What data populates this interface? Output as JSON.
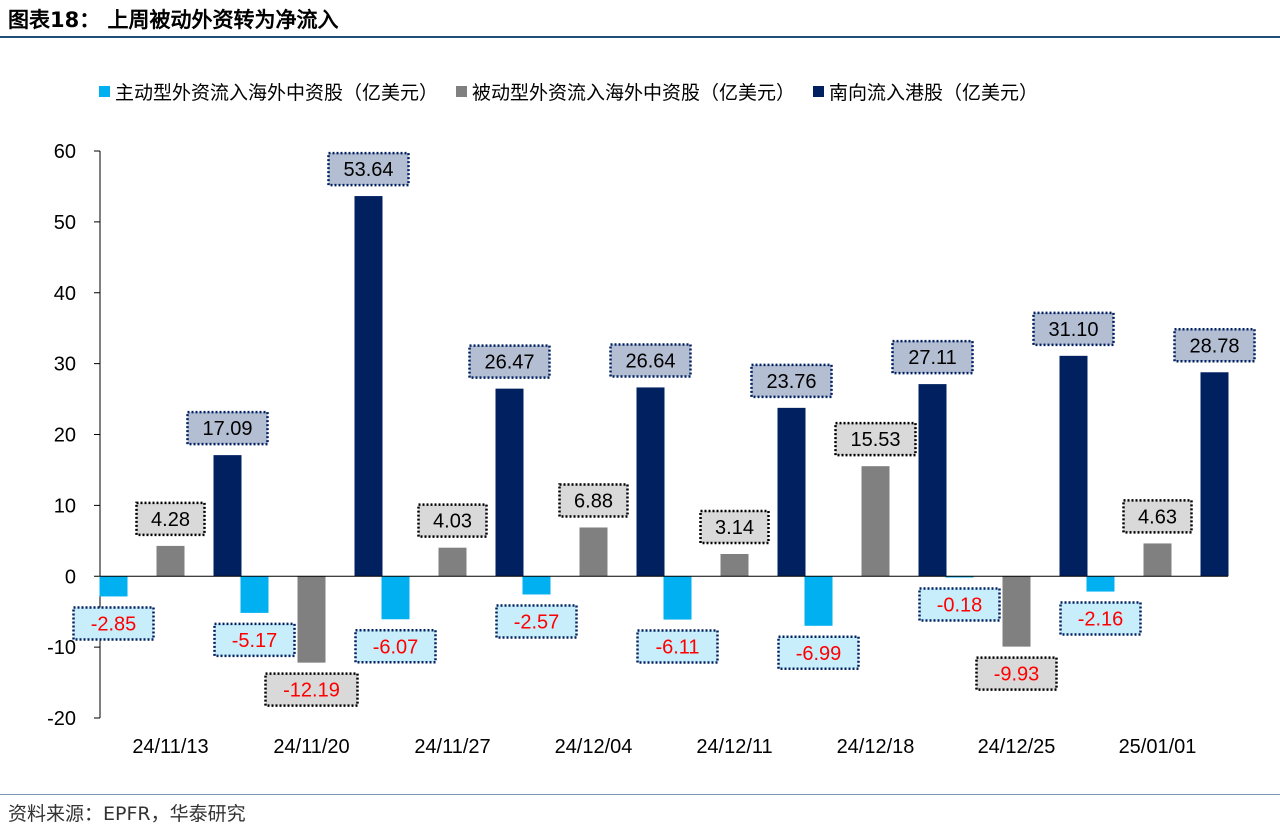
{
  "header": {
    "title": "图表18：  上周被动外资转为净流入"
  },
  "legend": [
    {
      "label": "主动型外资流入海外中资股（亿美元）",
      "color": "#00B0F0"
    },
    {
      "label": "被动型外资流入海外中资股（亿美元）",
      "color": "#808080"
    },
    {
      "label": "南向流入港股（亿美元）",
      "color": "#002060"
    }
  ],
  "source": {
    "text": "资料来源：EPFR，华泰研究"
  },
  "chart_data": {
    "type": "bar",
    "title": "",
    "xlabel": "",
    "ylabel": "",
    "categories": [
      "24/11/13",
      "24/11/20",
      "24/11/27",
      "24/12/04",
      "24/12/11",
      "24/12/18",
      "24/12/25",
      "25/01/01"
    ],
    "ylim": [
      -20,
      60
    ],
    "yticks": [
      -20,
      -10,
      0,
      10,
      20,
      30,
      40,
      50,
      60
    ],
    "ytick_labels": [
      "-20",
      "-10",
      "0",
      "10",
      "20",
      "30",
      "40",
      "50",
      "60"
    ],
    "legend_position": "top",
    "grid": false,
    "series": [
      {
        "name": "主动型外资流入海外中资股（亿美元）",
        "color": "#00B0F0",
        "values": [
          -2.85,
          -5.17,
          -6.07,
          -2.57,
          -6.11,
          -6.99,
          -0.18,
          -2.16
        ],
        "labels": [
          "-2.85",
          "-5.17",
          "-6.07",
          "-2.57",
          "-6.11",
          "-6.99",
          "-0.18",
          "-2.16"
        ]
      },
      {
        "name": "被动型外资流入海外中资股（亿美元）",
        "color": "#808080",
        "values": [
          4.28,
          -12.19,
          4.03,
          6.88,
          3.14,
          15.53,
          -9.93,
          4.63
        ],
        "labels": [
          "4.28",
          "-12.19",
          "4.03",
          "6.88",
          "3.14",
          "15.53",
          "-9.93",
          "4.63"
        ]
      },
      {
        "name": "南向流入港股（亿美元）",
        "color": "#002060",
        "values": [
          17.09,
          53.64,
          26.47,
          26.64,
          23.76,
          27.11,
          31.1,
          28.78
        ],
        "labels": [
          "17.09",
          "53.64",
          "26.47",
          "26.64",
          "23.76",
          "27.11",
          "31.10",
          "28.78"
        ]
      }
    ],
    "label_styles": {
      "positive_text_color": "#000000",
      "negative_text_color": "#FF0000",
      "box_fill": [
        "#C9EEFB",
        "#D9D9D9",
        "#B4BED3"
      ],
      "box_border": [
        "#002060",
        "#000000",
        "#002060"
      ]
    }
  }
}
